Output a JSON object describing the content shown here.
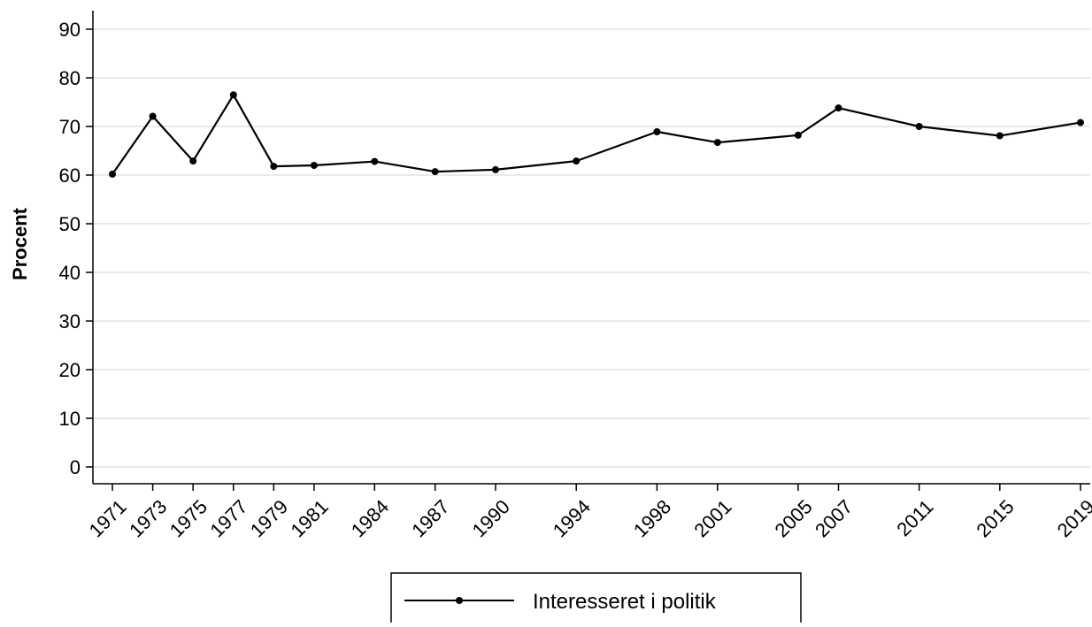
{
  "chart_data": {
    "type": "line",
    "ylabel": "Procent",
    "ylim": [
      0,
      94
    ],
    "yticks": [
      "0",
      "10",
      "20",
      "30",
      "40",
      "50",
      "60",
      "70",
      "80",
      "90"
    ],
    "grid": "horizontal",
    "x": [
      "1971",
      "1973",
      "1975",
      "1977",
      "1979",
      "1981",
      "1984",
      "1987",
      "1990",
      "1994",
      "1998",
      "2001",
      "2005",
      "2007",
      "2011",
      "2015",
      "2019"
    ],
    "series": [
      {
        "name": "Interesseret i politik",
        "color": "#000000",
        "marker": "circle",
        "values": [
          60.2,
          72.1,
          62.9,
          76.5,
          61.8,
          62.0,
          62.8,
          60.7,
          61.1,
          62.9,
          68.9,
          66.7,
          68.2,
          73.8,
          70.0,
          68.1,
          70.8
        ]
      }
    ],
    "legend_position": "bottom-center"
  }
}
